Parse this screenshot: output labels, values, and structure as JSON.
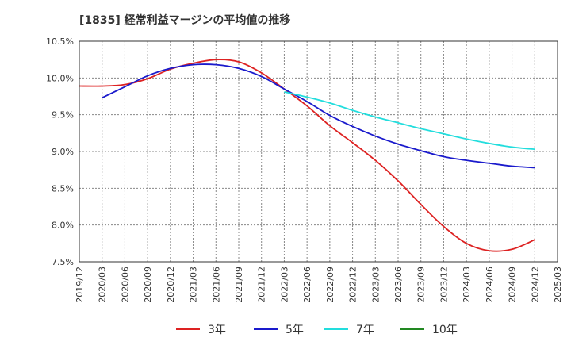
{
  "chart_data": {
    "type": "line",
    "title": "[1835]  経常利益マージンの平均値の推移",
    "xlabel": "",
    "ylabel": "",
    "ylim": [
      7.5,
      10.5
    ],
    "yticks": [
      7.5,
      8.0,
      8.5,
      9.0,
      9.5,
      10.0,
      10.5
    ],
    "ytick_labels": [
      "7.5%",
      "8.0%",
      "8.5%",
      "9.0%",
      "9.5%",
      "10.0%",
      "10.5%"
    ],
    "x_labels": [
      "2019/12",
      "2020/03",
      "2020/06",
      "2020/09",
      "2020/12",
      "2021/03",
      "2021/06",
      "2021/09",
      "2021/12",
      "2022/03",
      "2022/06",
      "2022/09",
      "2022/12",
      "2023/03",
      "2023/06",
      "2023/09",
      "2023/12",
      "2024/03",
      "2024/06",
      "2024/09",
      "2024/12",
      "2025/03"
    ],
    "grid": true,
    "legend_position": "bottom",
    "series": [
      {
        "name": "3年",
        "color": "#dd2222",
        "points": [
          [
            0,
            9.89
          ],
          [
            1,
            9.89
          ],
          [
            2,
            9.91
          ],
          [
            3,
            9.99
          ],
          [
            4,
            10.12
          ],
          [
            5,
            10.2
          ],
          [
            6,
            10.25
          ],
          [
            7,
            10.22
          ],
          [
            8,
            10.07
          ],
          [
            9,
            9.85
          ],
          [
            10,
            9.62
          ],
          [
            11,
            9.35
          ],
          [
            12,
            9.12
          ],
          [
            13,
            8.88
          ],
          [
            14,
            8.6
          ],
          [
            15,
            8.28
          ],
          [
            16,
            7.98
          ],
          [
            17,
            7.75
          ],
          [
            18,
            7.65
          ],
          [
            19,
            7.67
          ],
          [
            20,
            7.8
          ]
        ]
      },
      {
        "name": "5年",
        "color": "#1a1acc",
        "points": [
          [
            1,
            9.73
          ],
          [
            2,
            9.88
          ],
          [
            3,
            10.03
          ],
          [
            4,
            10.13
          ],
          [
            5,
            10.18
          ],
          [
            6,
            10.18
          ],
          [
            7,
            10.13
          ],
          [
            8,
            10.02
          ],
          [
            9,
            9.85
          ],
          [
            10,
            9.68
          ],
          [
            11,
            9.49
          ],
          [
            12,
            9.34
          ],
          [
            13,
            9.21
          ],
          [
            14,
            9.1
          ],
          [
            15,
            9.01
          ],
          [
            16,
            8.93
          ],
          [
            17,
            8.88
          ],
          [
            18,
            8.84
          ],
          [
            19,
            8.8
          ],
          [
            20,
            8.78
          ]
        ]
      },
      {
        "name": "7年",
        "color": "#22dddd",
        "points": [
          [
            9,
            9.81
          ],
          [
            10,
            9.74
          ],
          [
            11,
            9.66
          ],
          [
            12,
            9.56
          ],
          [
            13,
            9.47
          ],
          [
            14,
            9.39
          ],
          [
            15,
            9.31
          ],
          [
            16,
            9.24
          ],
          [
            17,
            9.17
          ],
          [
            18,
            9.11
          ],
          [
            19,
            9.06
          ],
          [
            20,
            9.03
          ]
        ]
      },
      {
        "name": "10年",
        "color": "#228822",
        "points": []
      }
    ]
  }
}
